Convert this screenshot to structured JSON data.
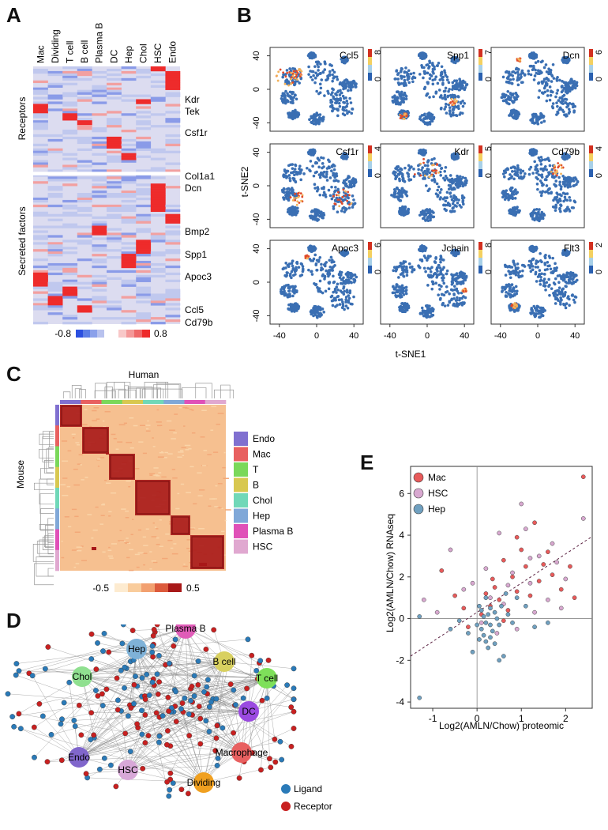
{
  "panel_labels": {
    "a": "A",
    "b": "B",
    "c": "C",
    "d": "D",
    "e": "E"
  },
  "panel_a": {
    "columns": [
      "Mac",
      "Dividing",
      "T cell",
      "B cell",
      "Plasma B",
      "DC",
      "Hep",
      "Chol",
      "HSC",
      "Endo"
    ],
    "section_receptors": "Receptors",
    "section_secreted": "Secreted factors",
    "genes": [
      "Kdr",
      "Tek",
      "Csf1r",
      "Col1a1",
      "Dcn",
      "Bmp2",
      "Spp1",
      "Apoc3",
      "Ccl5",
      "Cd79b"
    ],
    "scale_min": "-0.8",
    "scale_max": "0.8",
    "colors": {
      "low": "#2b50e0",
      "mid": "#dcdcf0",
      "high": "#ee2b2b"
    }
  },
  "panel_b": {
    "plots": [
      {
        "gene": "Ccl5",
        "max": "8",
        "min": "0"
      },
      {
        "gene": "Spp1",
        "max": "7",
        "min": "0"
      },
      {
        "gene": "Dcn",
        "max": "6",
        "min": "0"
      },
      {
        "gene": "Csf1r",
        "max": "4",
        "min": "0"
      },
      {
        "gene": "Kdr",
        "max": "5",
        "min": "0"
      },
      {
        "gene": "Cd79b",
        "max": "4",
        "min": "0"
      },
      {
        "gene": "Apoc3",
        "max": "6",
        "min": "0"
      },
      {
        "gene": "Jchain",
        "max": "8",
        "min": "0"
      },
      {
        "gene": "Flt3",
        "max": "2",
        "min": "0"
      }
    ],
    "y_ticks": [
      "40",
      "0",
      "-40"
    ],
    "x_ticks": [
      "-40",
      "0",
      "40"
    ],
    "xlabel": "t-SNE1",
    "ylabel": "t-SNE2",
    "colors": {
      "base": "#3a6fb3",
      "hot": "#e04a2a",
      "warm": "#f2b25a"
    }
  },
  "panel_c": {
    "top_label": "Human",
    "side_label": "Mouse",
    "legend": [
      {
        "label": "Endo",
        "color": "#8070d0"
      },
      {
        "label": "Mac",
        "color": "#e86060"
      },
      {
        "label": "T",
        "color": "#7ad85a"
      },
      {
        "label": "B",
        "color": "#d8c850"
      },
      {
        "label": "Chol",
        "color": "#70d8b8"
      },
      {
        "label": "Hep",
        "color": "#80a8d8"
      },
      {
        "label": "Plasma B",
        "color": "#e050b8"
      },
      {
        "label": "HSC",
        "color": "#e0a8d0"
      }
    ],
    "scale_min": "-0.5",
    "scale_max": "0.5",
    "colors": {
      "low": "#fde8c8",
      "mid": "#f0a070",
      "high": "#a01010"
    }
  },
  "panel_d": {
    "nodes": [
      {
        "label": "Hep",
        "color": "#7fb2d8"
      },
      {
        "label": "Plasma B",
        "color": "#e05cb8"
      },
      {
        "label": "B cell",
        "color": "#d8d060"
      },
      {
        "label": "Chol",
        "color": "#90e090"
      },
      {
        "label": "T cell",
        "color": "#7ee05a"
      },
      {
        "label": "DC",
        "color": "#9a4ae0"
      },
      {
        "label": "Endo",
        "color": "#8066cc"
      },
      {
        "label": "HSC",
        "color": "#d8a8d8"
      },
      {
        "label": "Macrophage",
        "color": "#e86060"
      },
      {
        "label": "Dividing",
        "color": "#f0a020"
      }
    ],
    "legend": [
      {
        "label": "Ligand",
        "color": "#2a7ab8"
      },
      {
        "label": "Receptor",
        "color": "#c82020"
      }
    ]
  },
  "chart_data": {
    "type": "scatter",
    "xlabel": "Log2(AMLN/Chow) proteomic",
    "ylabel": "Log2(AMLN/Chow) RNAseq",
    "xlim": [
      -1.5,
      2.6
    ],
    "ylim": [
      -4.3,
      7.3
    ],
    "x_ticks": [
      -1,
      0,
      1,
      2
    ],
    "y_ticks": [
      -4,
      -2,
      0,
      2,
      4,
      6
    ],
    "reference_lines": {
      "x": 0,
      "y": 0
    },
    "fit_line": {
      "slope": 1.4,
      "intercept": 0.3,
      "x_range": [
        -1.5,
        2.5
      ]
    },
    "legend": [
      {
        "label": "Mac",
        "color": "#e85a5a"
      },
      {
        "label": "HSC",
        "color": "#d8a8d0"
      },
      {
        "label": "Hep",
        "color": "#6fa0c0"
      }
    ],
    "series": [
      {
        "name": "Mac",
        "points": [
          [
            2.4,
            6.8
          ],
          [
            1.3,
            4.6
          ],
          [
            0.9,
            3.9
          ],
          [
            1.6,
            3.2
          ],
          [
            0.6,
            2.8
          ],
          [
            1.1,
            2.5
          ],
          [
            0.8,
            2.0
          ],
          [
            1.4,
            1.8
          ],
          [
            0.4,
            1.5
          ],
          [
            1.9,
            1.4
          ],
          [
            0.2,
            1.2
          ],
          [
            0.5,
            0.9
          ],
          [
            1.2,
            1.1
          ],
          [
            0.3,
            0.6
          ],
          [
            0.7,
            0.4
          ],
          [
            -0.3,
            0.5
          ],
          [
            1.7,
            2.1
          ],
          [
            2.2,
            1.0
          ],
          [
            -0.8,
            2.3
          ],
          [
            0.1,
            0.2
          ],
          [
            0.9,
            1.3
          ],
          [
            1.5,
            2.6
          ],
          [
            -0.2,
            -0.4
          ],
          [
            0.6,
            -0.1
          ],
          [
            2.1,
            2.5
          ],
          [
            1.0,
            3.3
          ],
          [
            0.35,
            1.9
          ],
          [
            -0.5,
            1.1
          ]
        ]
      },
      {
        "name": "HSC",
        "points": [
          [
            2.4,
            4.8
          ],
          [
            1.0,
            5.5
          ],
          [
            0.5,
            4.1
          ],
          [
            1.8,
            2.7
          ],
          [
            -0.6,
            3.3
          ],
          [
            0.8,
            2.2
          ],
          [
            1.2,
            1.7
          ],
          [
            -0.3,
            1.4
          ],
          [
            0.3,
            1.0
          ],
          [
            1.6,
            0.9
          ],
          [
            2.0,
            1.9
          ],
          [
            0.6,
            0.7
          ],
          [
            -0.9,
            0.3
          ],
          [
            0.1,
            -0.2
          ],
          [
            1.3,
            0.3
          ],
          [
            0.9,
            -0.5
          ],
          [
            1.4,
            3.0
          ],
          [
            0.2,
            2.4
          ],
          [
            -1.2,
            0.9
          ],
          [
            1.9,
            0.5
          ],
          [
            0.7,
            1.6
          ],
          [
            1.1,
            4.3
          ],
          [
            1.7,
            3.6
          ],
          [
            -0.1,
            1.7
          ],
          [
            0.45,
            -0.7
          ],
          [
            1.2,
            2.9
          ]
        ]
      },
      {
        "name": "Hep",
        "points": [
          [
            -1.3,
            -3.8
          ],
          [
            -1.3,
            0.1
          ],
          [
            0.1,
            -0.5
          ],
          [
            0.2,
            -0.2
          ],
          [
            0.3,
            -0.9
          ],
          [
            0.15,
            0.1
          ],
          [
            0.4,
            0.3
          ],
          [
            0.05,
            -1.0
          ],
          [
            0.25,
            -1.4
          ],
          [
            0.5,
            -0.3
          ],
          [
            0.6,
            -1.8
          ],
          [
            0.35,
            -0.6
          ],
          [
            0.1,
            0.4
          ],
          [
            -0.2,
            -0.7
          ],
          [
            0.45,
            0.0
          ],
          [
            0.3,
            0.5
          ],
          [
            0.2,
            -1.1
          ],
          [
            0.8,
            -0.2
          ],
          [
            0.55,
            0.6
          ],
          [
            0.0,
            -0.3
          ],
          [
            -0.4,
            -0.1
          ],
          [
            0.7,
            0.2
          ],
          [
            0.25,
            0.2
          ],
          [
            0.15,
            -0.8
          ],
          [
            0.4,
            -1.2
          ],
          [
            1.1,
            0.6
          ],
          [
            0.9,
            1.0
          ],
          [
            -0.6,
            -0.5
          ],
          [
            1.3,
            -0.4
          ],
          [
            0.65,
            1.2
          ],
          [
            0.05,
            0.6
          ],
          [
            0.3,
            -0.3
          ],
          [
            0.5,
            -2.0
          ],
          [
            1.6,
            -0.2
          ],
          [
            -0.1,
            -1.6
          ],
          [
            0.2,
            1.0
          ]
        ]
      }
    ]
  }
}
